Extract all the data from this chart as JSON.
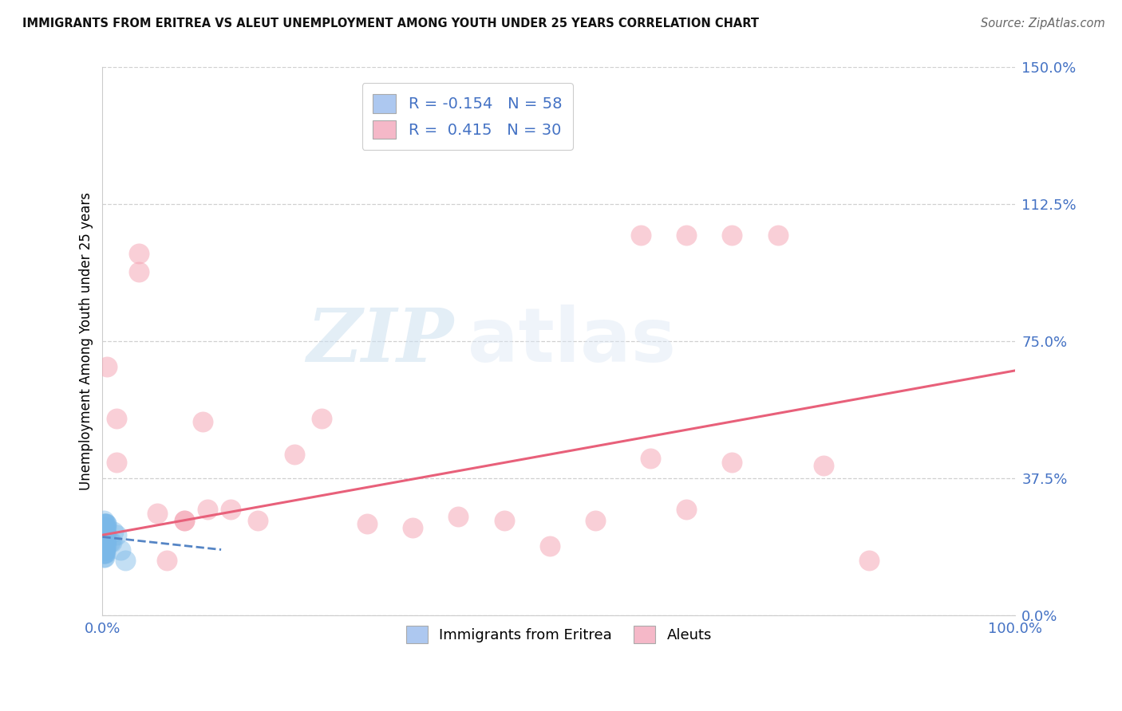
{
  "title": "IMMIGRANTS FROM ERITREA VS ALEUT UNEMPLOYMENT AMONG YOUTH UNDER 25 YEARS CORRELATION CHART",
  "source": "Source: ZipAtlas.com",
  "ylabel": "Unemployment Among Youth under 25 years",
  "ytick_values": [
    0.0,
    0.375,
    0.75,
    1.125,
    1.5
  ],
  "ytick_labels": [
    "0.0%",
    "37.5%",
    "75.0%",
    "112.5%",
    "150.0%"
  ],
  "xtick_left_label": "0.0%",
  "xtick_right_label": "100.0%",
  "xlim": [
    0.0,
    1.0
  ],
  "ylim": [
    0.0,
    1.5
  ],
  "R_eritrea": -0.154,
  "N_eritrea": 58,
  "R_aleut": 0.415,
  "N_aleut": 30,
  "legend_label1": "Immigrants from Eritrea",
  "legend_label2": "Aleuts",
  "watermark_zip": "ZIP",
  "watermark_atlas": "atlas",
  "blue_scatter_color": "#7ab8e8",
  "pink_scatter_color": "#f5a0b0",
  "blue_line_color": "#5585c5",
  "pink_line_color": "#e8607a",
  "blue_legend_patch": "#adc8f0",
  "pink_legend_patch": "#f5b8c8",
  "axis_tick_color": "#4472c4",
  "grid_color": "#d0d0d0",
  "eritrea_x": [
    0.001,
    0.002,
    0.003,
    0.001,
    0.004,
    0.002,
    0.003,
    0.001,
    0.002,
    0.004,
    0.001,
    0.002,
    0.003,
    0.001,
    0.002,
    0.003,
    0.001,
    0.002,
    0.004,
    0.001,
    0.002,
    0.003,
    0.001,
    0.002,
    0.003,
    0.001,
    0.004,
    0.002,
    0.003,
    0.001,
    0.002,
    0.003,
    0.001,
    0.002,
    0.004,
    0.001,
    0.002,
    0.003,
    0.001,
    0.002,
    0.003,
    0.001,
    0.002,
    0.004,
    0.001,
    0.002,
    0.003,
    0.001,
    0.002,
    0.003,
    0.001,
    0.002,
    0.01,
    0.015,
    0.02,
    0.008,
    0.025,
    0.012
  ],
  "eritrea_y": [
    0.26,
    0.22,
    0.2,
    0.18,
    0.24,
    0.19,
    0.23,
    0.21,
    0.17,
    0.25,
    0.2,
    0.16,
    0.25,
    0.22,
    0.18,
    0.2,
    0.23,
    0.19,
    0.22,
    0.21,
    0.24,
    0.18,
    0.2,
    0.22,
    0.17,
    0.25,
    0.19,
    0.21,
    0.23,
    0.2,
    0.18,
    0.22,
    0.16,
    0.24,
    0.2,
    0.19,
    0.25,
    0.21,
    0.17,
    0.23,
    0.2,
    0.18,
    0.22,
    0.25,
    0.19,
    0.21,
    0.23,
    0.17,
    0.2,
    0.24,
    0.22,
    0.18,
    0.2,
    0.22,
    0.18,
    0.2,
    0.15,
    0.23
  ],
  "aleut_x": [
    0.005,
    0.015,
    0.04,
    0.06,
    0.09,
    0.11,
    0.14,
    0.17,
    0.21,
    0.24,
    0.29,
    0.34,
    0.39,
    0.44,
    0.49,
    0.54,
    0.6,
    0.64,
    0.69,
    0.74,
    0.79,
    0.84,
    0.59,
    0.64,
    0.69,
    0.015,
    0.04,
    0.07,
    0.09,
    0.115
  ],
  "aleut_y": [
    0.68,
    0.42,
    0.94,
    0.28,
    0.26,
    0.53,
    0.29,
    0.26,
    0.44,
    0.54,
    0.25,
    0.24,
    0.27,
    0.26,
    0.19,
    0.26,
    0.43,
    0.29,
    1.04,
    1.04,
    0.41,
    0.15,
    1.04,
    1.04,
    0.42,
    0.54,
    0.99,
    0.15,
    0.26,
    0.29
  ],
  "pink_line_x0": 0.0,
  "pink_line_y0": 0.22,
  "pink_line_x1": 1.0,
  "pink_line_y1": 0.67,
  "blue_line_x0": 0.0,
  "blue_line_y0": 0.215,
  "blue_line_x1": 0.13,
  "blue_line_y1": 0.18
}
